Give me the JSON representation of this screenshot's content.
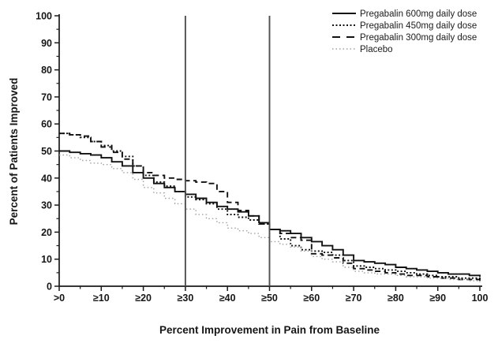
{
  "figure": {
    "background": "#ffffff",
    "axis_color": "#1a1a1a",
    "text_color": "#161616"
  },
  "chart_data": {
    "type": "line",
    "subtype": "step",
    "title": "",
    "xlabel": "Percent Improvement in Pain from Baseline",
    "ylabel": "Percent of Patients Improved",
    "xlim": [
      0,
      100
    ],
    "ylim": [
      0,
      100
    ],
    "grid": false,
    "legend_position": "top-right",
    "x_tick_values": [
      0,
      10,
      20,
      30,
      40,
      50,
      60,
      70,
      80,
      90,
      100
    ],
    "x_tick_labels": [
      ">0",
      "≥10",
      "≥20",
      "≥30",
      "≥40",
      "≥50",
      "≥60",
      "≥70",
      "≥80",
      "≥90",
      "100"
    ],
    "x_minor_ticks": [
      5,
      15,
      25,
      35,
      45,
      55,
      65,
      75,
      85,
      95
    ],
    "y_tick_values": [
      0,
      10,
      20,
      30,
      40,
      50,
      60,
      70,
      80,
      90,
      100
    ],
    "y_minor_ticks": [
      5,
      15,
      25,
      35,
      45,
      55,
      65,
      75,
      85,
      95
    ],
    "reference_lines": {
      "x_values": [
        30,
        50
      ],
      "color": "#4f4f4f"
    },
    "x": [
      0,
      2.5,
      5,
      7.5,
      10,
      12.5,
      15,
      17.5,
      20,
      22.5,
      25,
      27.5,
      30,
      32.5,
      35,
      37.5,
      40,
      42.5,
      45,
      47.5,
      50,
      52.5,
      55,
      57.5,
      60,
      62.5,
      65,
      67.5,
      70,
      72.5,
      75,
      77.5,
      80,
      82.5,
      85,
      87.5,
      90,
      92.5,
      95,
      97.5,
      100
    ],
    "series": [
      {
        "name": "Pregabalin 600mg daily dose",
        "line_style": "solid",
        "color": "#111111",
        "width": 1.9,
        "dash": "",
        "legend_dash": "",
        "values": [
          50,
          49.5,
          49,
          48.5,
          47.5,
          46,
          44.5,
          42,
          40,
          38,
          36.5,
          35,
          34,
          32.5,
          31,
          29.5,
          28.5,
          27.5,
          26,
          23.5,
          21,
          20.5,
          19.5,
          18,
          16.5,
          15,
          13.5,
          11.5,
          9.5,
          9,
          8.5,
          8,
          7,
          6.5,
          6,
          5.5,
          5,
          4.5,
          4.5,
          4,
          3.5
        ]
      },
      {
        "name": "Pregabalin 450mg daily dose",
        "line_style": "dotted",
        "color": "#111111",
        "width": 1.9,
        "dash": "2 2.5",
        "legend_dash": "2 2.5",
        "values": [
          56.5,
          56,
          55,
          53.5,
          52,
          50,
          48,
          44.5,
          41,
          38.5,
          37,
          35,
          33,
          32,
          30.5,
          28.5,
          26.5,
          25.5,
          24.5,
          23,
          21,
          17.5,
          15,
          13.5,
          13,
          12.5,
          11.5,
          9.5,
          7.5,
          7,
          6.5,
          6,
          5.5,
          5,
          4.5,
          4,
          3.5,
          3.5,
          3,
          3,
          2.5
        ]
      },
      {
        "name": "Pregabalin 300mg daily dose",
        "line_style": "dashed",
        "color": "#111111",
        "width": 1.9,
        "dash": "7 4.5",
        "legend_dash": "10 8",
        "values": [
          56.5,
          56,
          55.5,
          53.5,
          51.5,
          49.5,
          47,
          44.5,
          42,
          41,
          40,
          39.5,
          39,
          38.5,
          38,
          35,
          31,
          28,
          26,
          23,
          21,
          19.5,
          18,
          17,
          12,
          11.5,
          10.5,
          8.5,
          6.5,
          6,
          5.5,
          5,
          4.5,
          4,
          4,
          3.5,
          3,
          3,
          2.5,
          2.5,
          2
        ]
      },
      {
        "name": "Placebo",
        "line_style": "dotted-light",
        "color": "#a0a0a0",
        "width": 1.4,
        "dash": "1.5 3",
        "legend_dash": "1.5 3",
        "values": [
          48.5,
          47.5,
          46.5,
          45.5,
          45,
          43.5,
          42,
          39.5,
          36.5,
          34.5,
          32.5,
          30.5,
          28.5,
          26.5,
          25,
          23.5,
          21.5,
          20.5,
          19.5,
          18,
          16.5,
          15.5,
          14.5,
          13,
          11,
          10,
          9,
          7,
          5.5,
          5,
          4.5,
          4.5,
          4,
          3.5,
          3.5,
          3,
          3,
          2.5,
          2.5,
          2,
          1.5
        ]
      }
    ]
  }
}
